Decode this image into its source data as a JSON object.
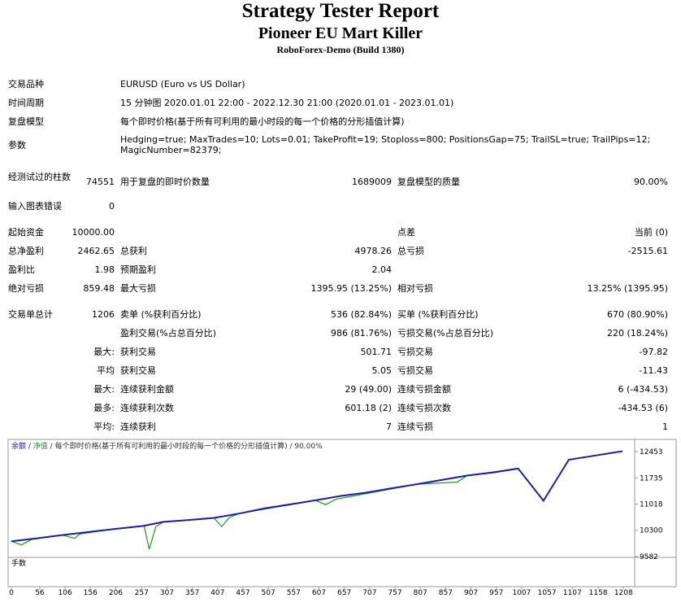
{
  "header": {
    "title": "Strategy Tester Report",
    "subtitle": "Pioneer EU Mart Killer",
    "server": "RoboForex-Demo (Build 1380)"
  },
  "info": {
    "rows": [
      [
        "交易品种",
        "EURUSD (Euro vs US Dollar)"
      ],
      [
        "时间周期",
        "15 分钟图 2020.01.01 22:00 - 2022.12.30 21:00 (2020.01.01 - 2023.01.01)"
      ],
      [
        "复盘模型",
        "每个即时价格(基于所有可利用的最小时段的每一个价格的分形插值计算)"
      ],
      [
        "参数",
        "Hedging=true; MaxTrades=10; Lots=0.01; TakeProfit=19; Stoploss=800; PositionsGap=75; TrailSL=true; TrailPips=12; MagicNumber=82379;"
      ]
    ]
  },
  "stats": {
    "rows": [
      [
        "经测试过的柱数",
        "74551",
        "用于复盘的即时价数量",
        "1689009",
        "复盘模型的质量",
        "90.00%"
      ],
      [
        "输入图表错误",
        "0",
        null,
        null,
        null,
        null
      ],
      [
        "起始资金",
        "10000.00",
        null,
        null,
        "点差",
        "当前 (0)"
      ],
      [
        "总净盈利",
        "2462.65",
        "总获利",
        "4978.26",
        "总亏损",
        "-2515.61"
      ],
      [
        "盈利比",
        "1.98",
        "预期盈利",
        "2.04",
        null,
        null
      ],
      [
        "绝对亏损",
        "859.48",
        "最大亏损",
        "1395.95 (13.25%)",
        "相对亏损",
        "13.25% (1395.95)"
      ],
      [
        "交易单总计",
        "1206",
        "卖单 (%获利百分比)",
        "536 (82.84%)",
        "买单 (%获利百分比)",
        "670 (80.90%)"
      ],
      [
        null,
        null,
        "盈利交易(%占总百分比)",
        "986 (81.76%)",
        "亏损交易(%占总百分比)",
        "220 (18.24%)"
      ],
      [
        null,
        "最大:",
        "获利交易",
        "501.71",
        "亏损交易",
        "-97.82"
      ],
      [
        null,
        "平均",
        "获利交易",
        "5.05",
        "亏损交易",
        "-11.43"
      ],
      [
        null,
        "最大:",
        "连续获利金额",
        "29 (49.00)",
        "连续亏损金额",
        "6 (-434.53)"
      ],
      [
        null,
        "最多:",
        "连续获利次数",
        "601.18 (2)",
        "连续亏损次数",
        "-434.53 (6)"
      ],
      [
        null,
        "平均:",
        "连续获利",
        "7",
        "连续亏损",
        "1"
      ]
    ]
  },
  "chart_data": {
    "type": "line",
    "separator": "/",
    "description": "每个即时价格(基于所有可利用的最小时段的每一个价格的分形插值计算)",
    "quality": "90.00%",
    "volume_label": "手数",
    "xlim": [
      0,
      1230
    ],
    "ylim": [
      9582,
      12720
    ],
    "xticks": [
      0,
      56,
      106,
      156,
      206,
      257,
      307,
      357,
      407,
      457,
      507,
      557,
      607,
      657,
      707,
      757,
      807,
      857,
      907,
      957,
      1007,
      1057,
      1107,
      1158,
      1208
    ],
    "yticks": [
      9582,
      10300,
      11018,
      11735,
      12453
    ],
    "series": [
      {
        "name": "余额",
        "color": "#1c1ca8",
        "x": [
          0,
          50,
          100,
          150,
          200,
          260,
          300,
          350,
          400,
          450,
          500,
          550,
          600,
          650,
          700,
          750,
          800,
          850,
          900,
          950,
          1000,
          1050,
          1100,
          1150,
          1206
        ],
        "values": [
          10000,
          10080,
          10170,
          10250,
          10330,
          10420,
          10530,
          10580,
          10640,
          10760,
          10900,
          11010,
          11120,
          11240,
          11330,
          11450,
          11560,
          11680,
          11800,
          11880,
          11990,
          11110,
          12230,
          12340,
          12462.65
        ]
      },
      {
        "name": "净值",
        "color": "#1a9a1a",
        "x": [
          0,
          20,
          40,
          100,
          125,
          135,
          200,
          262,
          272,
          285,
          300,
          400,
          415,
          430,
          450,
          600,
          620,
          640,
          800,
          880,
          900,
          1000
        ],
        "values": [
          10000,
          9900,
          10050,
          10170,
          10080,
          10200,
          10330,
          10420,
          9782,
          10400,
          10530,
          10640,
          10400,
          10650,
          10760,
          11120,
          11000,
          11150,
          11560,
          11620,
          11800,
          11990
        ]
      }
    ]
  }
}
